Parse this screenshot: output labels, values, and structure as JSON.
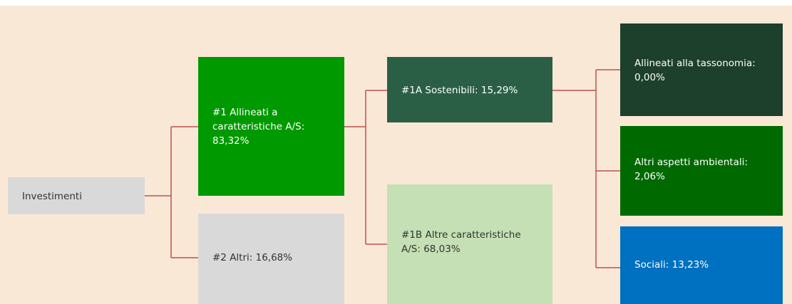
{
  "nodes": [
    {
      "label": "Investimenti"
    },
    {
      "label": "#1 Allineati a caratteristiche A/S: 83,32%"
    },
    {
      "label": "#2 Altri: 16,68%"
    },
    {
      "label": "#1A Sostenibili: 15,29%"
    },
    {
      "label": "#1B Altre caratteristiche A/S: 68,03%"
    },
    {
      "label": "Allineati alla tassonomia: 0,00%"
    },
    {
      "label": "Altri aspetti ambientali: 2,06%"
    },
    {
      "label": "Sociali: 13,23%"
    }
  ]
}
